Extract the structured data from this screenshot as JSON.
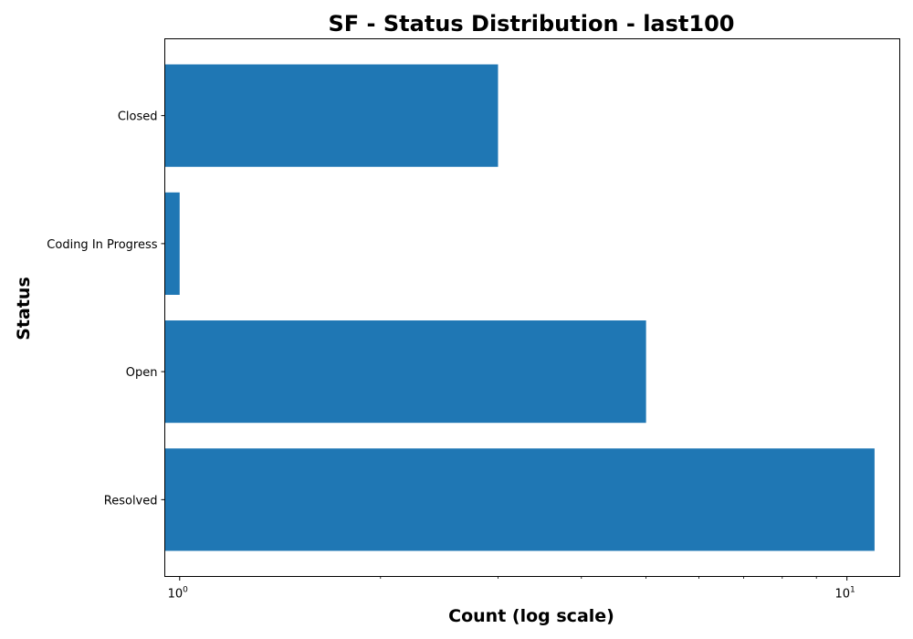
{
  "chart_data": {
    "type": "bar",
    "orientation": "horizontal",
    "title": "SF - Status Distribution - last100",
    "xlabel": "Count (log scale)",
    "ylabel": "Status",
    "xscale": "log",
    "xlim": [
      0.95,
      12
    ],
    "categories": [
      "Closed",
      "Coding In Progress",
      "Open",
      "Resolved"
    ],
    "values": [
      3,
      1,
      5,
      11
    ],
    "major_ticks": [
      {
        "value": 1,
        "base": "10",
        "exponent": "0"
      },
      {
        "value": 10,
        "base": "10",
        "exponent": "1"
      }
    ],
    "minor_ticks": [
      2,
      3,
      4,
      5,
      6,
      7,
      8,
      9
    ],
    "bar_color": "#1f77b4",
    "grid": false,
    "legend": "none"
  }
}
